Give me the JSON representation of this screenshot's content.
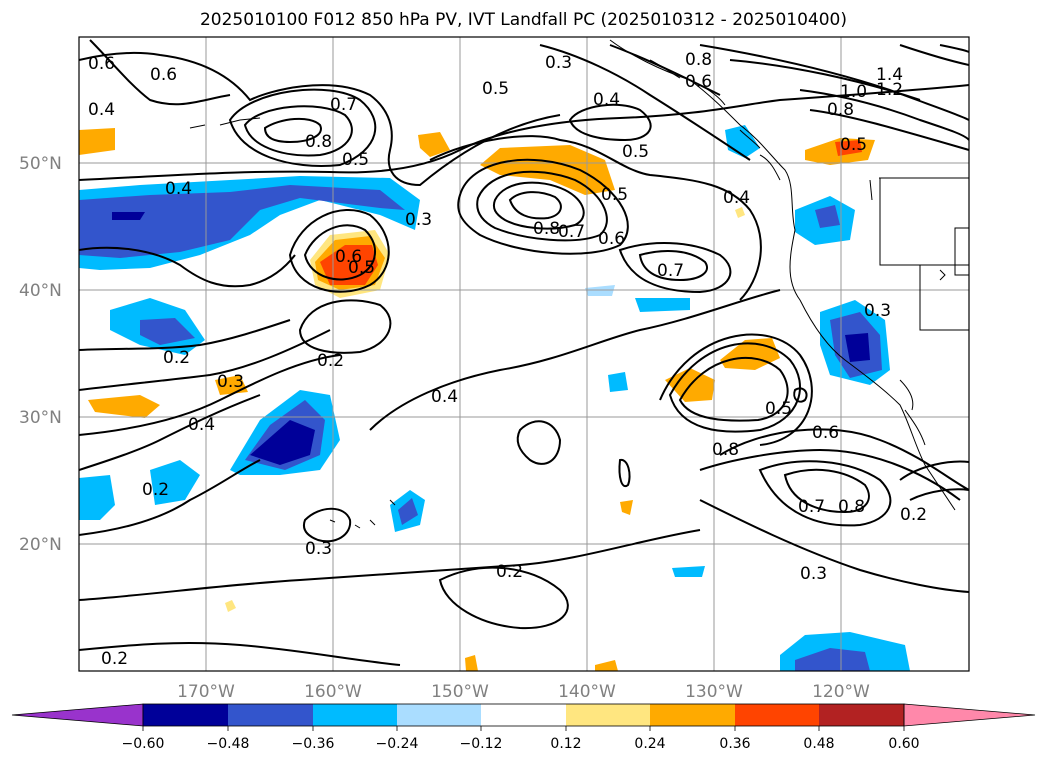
{
  "title": "2025010100 F012 850 hPa PV, IVT Landfall PC (2025010312 - 2025010400)",
  "map": {
    "lon_range": [
      -180,
      -110
    ],
    "lat_range": [
      10,
      60
    ],
    "longitude_labels": [
      "170°W",
      "160°W",
      "150°W",
      "140°W",
      "130°W",
      "120°W"
    ],
    "latitude_labels": [
      "50°N",
      "40°N",
      "30°N",
      "20°N"
    ],
    "contour_labels": [
      "0.6",
      "0.6",
      "0.4",
      "0.7",
      "0.8",
      "0.5",
      "0.5",
      "0.3",
      "0.8",
      "0.6",
      "0.4",
      "0.5",
      "1.4",
      "1.2",
      "1.0",
      "0.8",
      "0.5",
      "0.4",
      "0.5",
      "0.4",
      "0.3",
      "0.6",
      "0.5",
      "0.8",
      "0.7",
      "0.6",
      "0.7",
      "0.3",
      "0.2",
      "0.2",
      "0.3",
      "0.4",
      "0.4",
      "0.5",
      "0.6",
      "0.8",
      "0.2",
      "0.7",
      "0.8",
      "0.2",
      "0.3",
      "0.2",
      "0.3",
      "0.2"
    ],
    "colors": {
      "contour": "#000000",
      "grid": "#999999",
      "coast": "#000000"
    }
  },
  "colorbar": {
    "ticks": [
      "−0.60",
      "−0.48",
      "−0.36",
      "−0.24",
      "−0.12",
      "0.12",
      "0.24",
      "0.36",
      "0.48",
      "0.60"
    ],
    "colors": [
      "#9933cc",
      "#000099",
      "#3355cc",
      "#00bbff",
      "#aaddff",
      "#ffffff",
      "#ffe680",
      "#ffaa00",
      "#ff4400",
      "#b22222",
      "#ff88aa"
    ]
  }
}
